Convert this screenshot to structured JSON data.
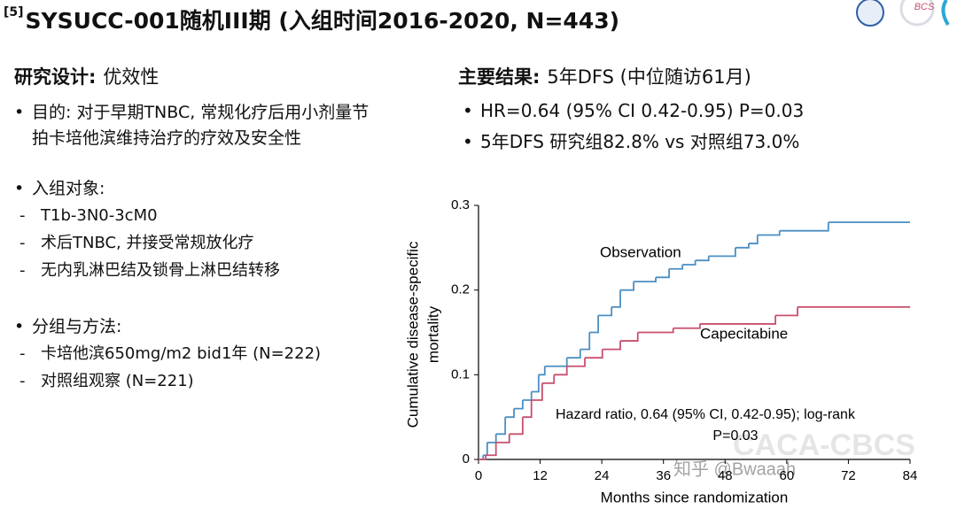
{
  "header": {
    "ref": "[5]",
    "title": "SYSUCC-001随机III期 (入组时间2016-2020, N=443)",
    "logo_text": "BCS"
  },
  "left": {
    "heading_bold": "研究设计:",
    "heading": "优效性",
    "sections": [
      {
        "bullet": "目的: 对于早期TNBC, 常规化疗后用小剂量节拍卡培他滨维持治疗的疗效及安全性",
        "items": []
      },
      {
        "bullet": "入组对象:",
        "items": [
          "T1b-3N0-3cM0",
          "术后TNBC, 并接受常规放化疗",
          "无内乳淋巴结及锁骨上淋巴结转移"
        ]
      },
      {
        "bullet": "分组与方法:",
        "items": [
          "卡培他滨650mg/m2 bid1年 (N=222)",
          "对照组观察 (N=221)"
        ]
      }
    ]
  },
  "right": {
    "heading_bold": "主要结果:",
    "heading": "5年DFS (中位随访61月)",
    "bullets": [
      "HR=0.64 (95% CI 0.42-0.95) P=0.03",
      "5年DFS 研究组82.8% vs 对照组73.0%"
    ]
  },
  "watermark": [
    "CACA-CBCS",
    "知乎 @Bwaaah"
  ],
  "chart_data": {
    "type": "step",
    "xlabel": "Months since randomization",
    "ylabel": [
      "Cumulative disease-specific",
      "mortality"
    ],
    "annotation": [
      "Hazard ratio, 0.64 (95% CI, 0.42-0.95); log-rank",
      "P=0.03"
    ],
    "xlim": [
      0,
      84
    ],
    "xticks": [
      0,
      12,
      24,
      36,
      48,
      60,
      72,
      84
    ],
    "ylim": [
      0,
      0.3
    ],
    "yticks": [
      0,
      0.1,
      0.2,
      0.3
    ],
    "series": [
      {
        "name": "Observation",
        "color": "#4a8fc4",
        "x": [
          0,
          0.9,
          1.7,
          3.4,
          5.2,
          6.9,
          8.6,
          10.3,
          11.7,
          12.9,
          17.2,
          19.8,
          21.6,
          23.3,
          25.9,
          27.6,
          30.2,
          34.5,
          37.1,
          39.7,
          42.2,
          44.8,
          50,
          52.6,
          54.3,
          58.6,
          68.1,
          84
        ],
        "values": [
          0,
          0.005,
          0.02,
          0.03,
          0.05,
          0.06,
          0.07,
          0.08,
          0.1,
          0.11,
          0.12,
          0.13,
          0.15,
          0.17,
          0.18,
          0.2,
          0.21,
          0.215,
          0.225,
          0.23,
          0.235,
          0.24,
          0.25,
          0.255,
          0.265,
          0.27,
          0.28,
          0.28
        ]
      },
      {
        "name": "Capecitabine",
        "color": "#c8506e",
        "x": [
          0,
          1.4,
          3.4,
          6,
          8.6,
          10.3,
          12.4,
          14.7,
          17.2,
          20.7,
          24.1,
          27.6,
          31,
          37.9,
          43.1,
          57.8,
          62.1,
          84
        ],
        "values": [
          0,
          0.005,
          0.02,
          0.03,
          0.05,
          0.07,
          0.09,
          0.1,
          0.11,
          0.12,
          0.13,
          0.14,
          0.15,
          0.155,
          0.16,
          0.17,
          0.18,
          0.18
        ]
      }
    ]
  }
}
